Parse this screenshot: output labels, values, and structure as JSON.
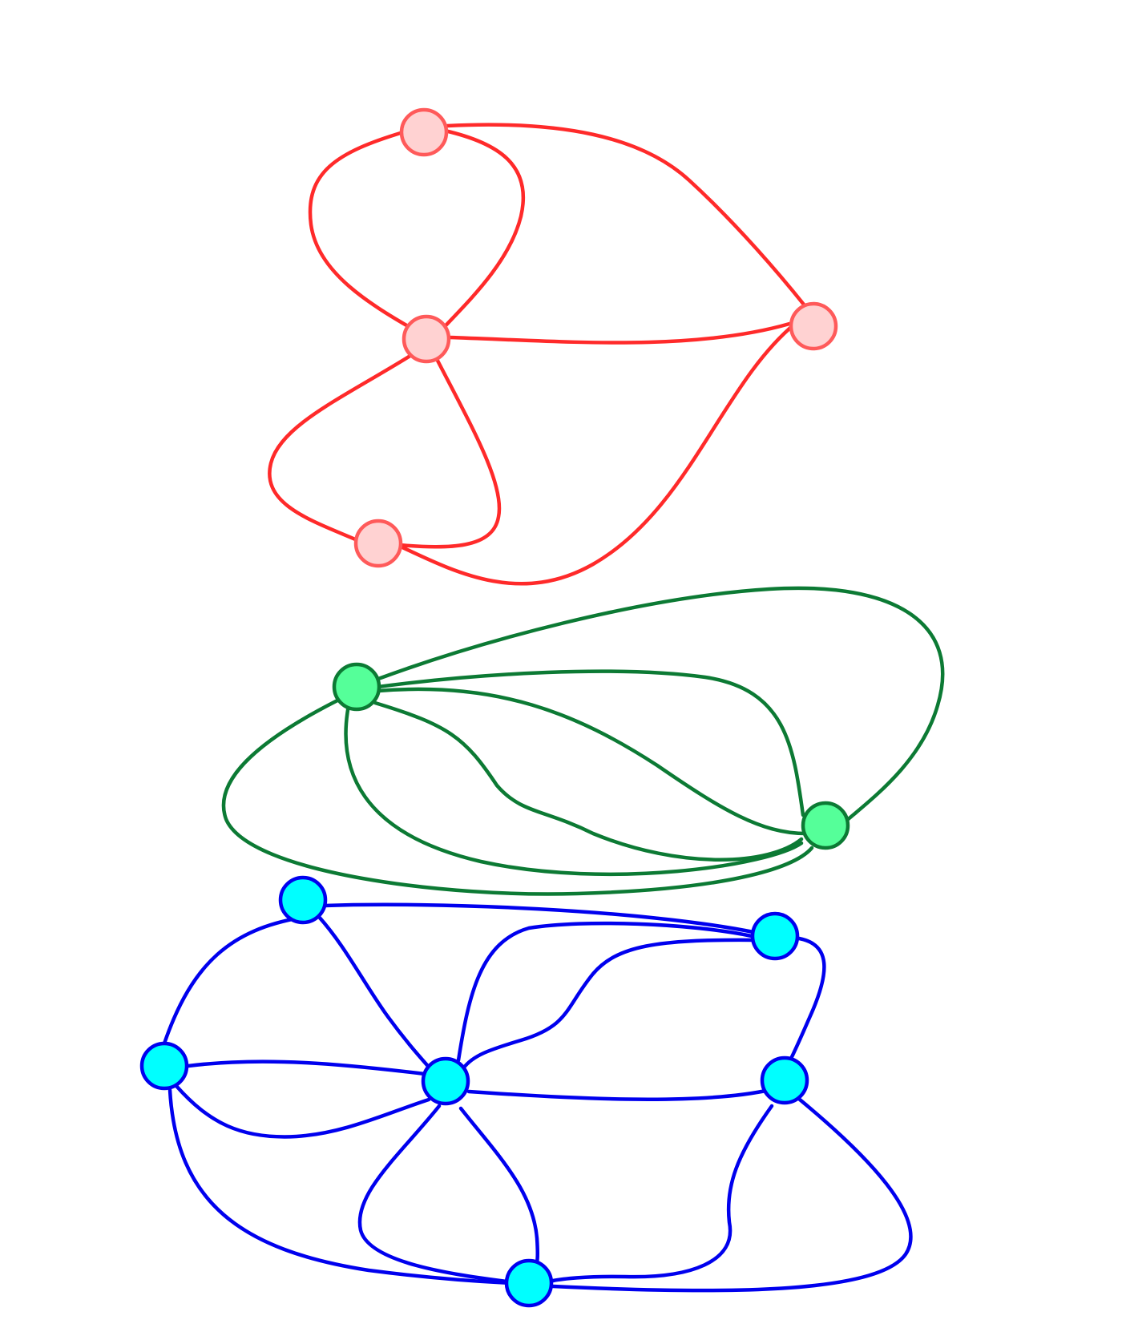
{
  "diagram": {
    "type": "multigraph",
    "components": [
      {
        "id": "red",
        "edge_color": "#ff2a2a",
        "node_fill": "#ffd2d2",
        "node_stroke": "#ff5a5a",
        "nodes": [
          "r1",
          "r2",
          "r3",
          "r4"
        ],
        "edges": [
          [
            "r1",
            "r2"
          ],
          [
            "r1",
            "r2"
          ],
          [
            "r1",
            "r3"
          ],
          [
            "r2",
            "r3"
          ],
          [
            "r2",
            "r4"
          ],
          [
            "r2",
            "r4"
          ],
          [
            "r3",
            "r4"
          ]
        ]
      },
      {
        "id": "green",
        "edge_color": "#0c7a34",
        "node_fill": "#55ff99",
        "node_stroke": "#0c7a34",
        "nodes": [
          "g1",
          "g2"
        ],
        "edges": [
          [
            "g1",
            "g2"
          ],
          [
            "g1",
            "g2"
          ],
          [
            "g1",
            "g2"
          ],
          [
            "g1",
            "g2"
          ],
          [
            "g1",
            "g2"
          ],
          [
            "g1",
            "g2"
          ]
        ]
      },
      {
        "id": "blue",
        "edge_color": "#0000ee",
        "node_fill": "#00ffff",
        "node_stroke": "#0000ee",
        "nodes": [
          "b1",
          "b2",
          "b3",
          "b4",
          "b5",
          "b6"
        ],
        "edges": [
          [
            "b1",
            "b2"
          ],
          [
            "b1",
            "b3"
          ],
          [
            "b1",
            "b4"
          ],
          [
            "b2",
            "b3"
          ],
          [
            "b2",
            "b4"
          ],
          [
            "b2",
            "b4"
          ],
          [
            "b3",
            "b4"
          ],
          [
            "b3",
            "b6"
          ],
          [
            "b3",
            "b6"
          ],
          [
            "b4",
            "b5"
          ],
          [
            "b4",
            "b6"
          ],
          [
            "b4",
            "b6"
          ],
          [
            "b5",
            "b6"
          ],
          [
            "b5",
            "b6"
          ],
          [
            "b5",
            "b2"
          ]
        ]
      }
    ]
  }
}
